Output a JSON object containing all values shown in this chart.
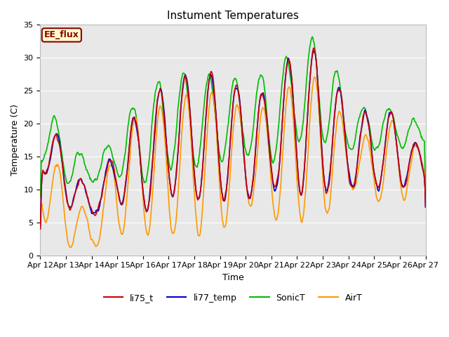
{
  "title": "Instument Temperatures",
  "xlabel": "Time",
  "ylabel": "Temperature (C)",
  "ylim": [
    0,
    35
  ],
  "x_tick_labels": [
    "Apr 12",
    "Apr 13",
    "Apr 14",
    "Apr 15",
    "Apr 16",
    "Apr 17",
    "Apr 18",
    "Apr 19",
    "Apr 20",
    "Apr 21",
    "Apr 22",
    "Apr 23",
    "Apr 24",
    "Apr 25",
    "Apr 26",
    "Apr 27"
  ],
  "line_colors": {
    "li75_t": "#cc0000",
    "li77_temp": "#0000cc",
    "SonicT": "#00bb00",
    "AirT": "#ff9900"
  },
  "ee_flux_label": "EE_flux",
  "ee_flux_bg": "#ffffcc",
  "ee_flux_border": "#8b0000",
  "background_color": "#ffffff",
  "plot_bg_color": "#e8e8e8",
  "grid_color": "#ffffff",
  "title_fontsize": 11,
  "label_fontsize": 9,
  "tick_fontsize": 8,
  "legend_fontsize": 9,
  "linewidth": 1.2,
  "n_points": 720
}
